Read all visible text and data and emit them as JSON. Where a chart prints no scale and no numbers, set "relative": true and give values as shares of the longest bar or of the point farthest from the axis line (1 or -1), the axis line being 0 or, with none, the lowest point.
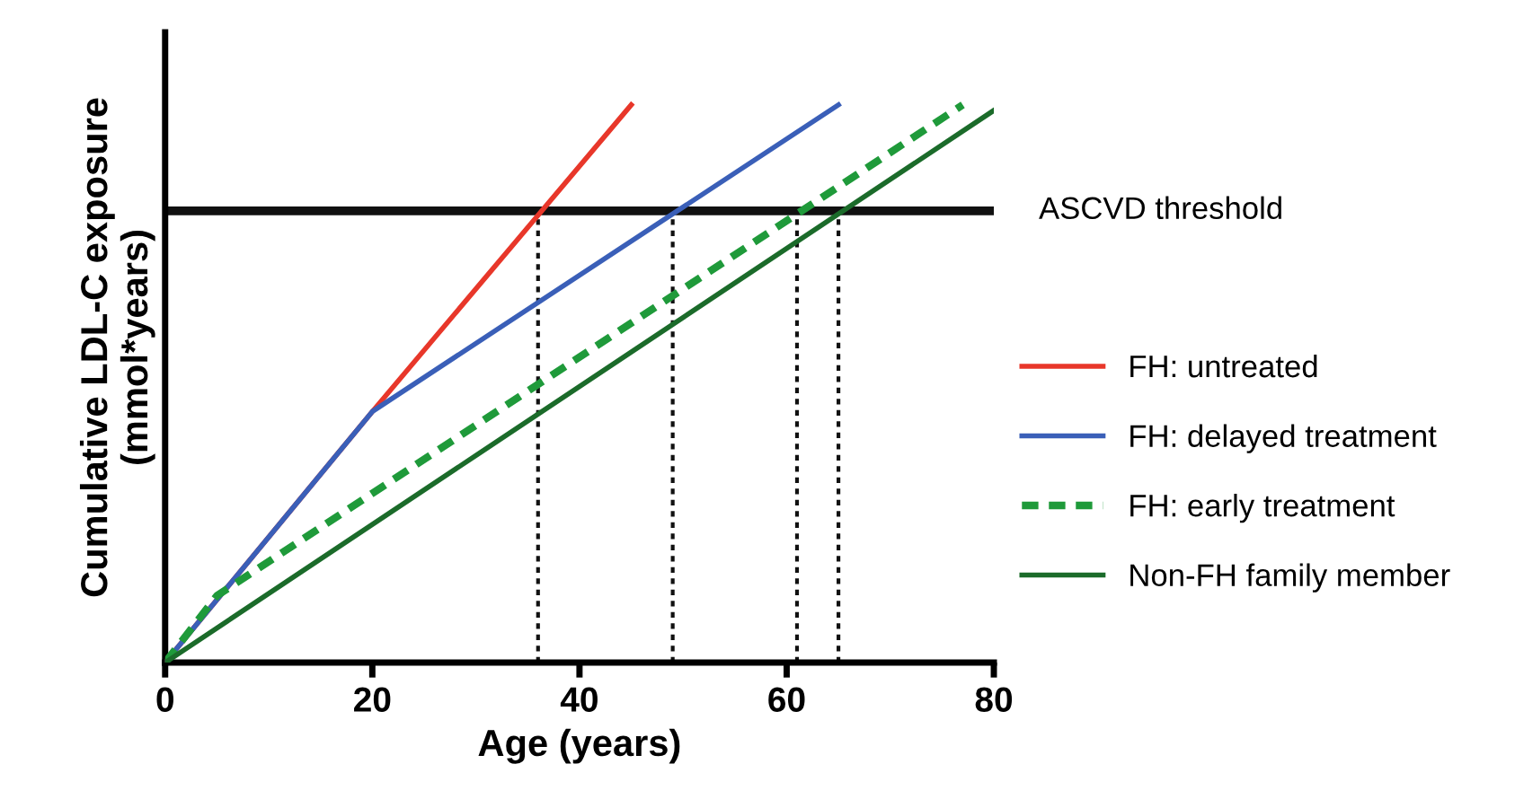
{
  "chart_data": {
    "type": "line",
    "relative": true,
    "xlabel": "Age (years)",
    "ylabel": "Cumulative LDL-C exposure\n(mmol*years)",
    "xlim": [
      0,
      80
    ],
    "xticks": [
      0,
      20,
      40,
      60,
      80
    ],
    "grid": false,
    "legend": "right",
    "series": [
      {
        "name": "FH: untreated",
        "color": "#e8372a",
        "x": [
          0,
          20,
          45
        ],
        "values": [
          0,
          0.45,
          1
        ],
        "line_style": "solid"
      },
      {
        "name": "FH: delayed treatment",
        "color": "#3a5fb8",
        "x": [
          0,
          20,
          65
        ],
        "values": [
          0,
          0.45,
          1
        ],
        "line_style": "solid"
      },
      {
        "name": "FH: early treatment",
        "color": "#1f9a3a",
        "x": [
          0,
          5,
          77
        ],
        "values": [
          0,
          0.12,
          1
        ],
        "line_style": "dashed"
      },
      {
        "name": "Non-FH family member",
        "color": "#1b6b2a",
        "x": [
          0,
          80
        ],
        "values": [
          0,
          0.99
        ],
        "line_style": "solid"
      }
    ],
    "ref_lines": [
      {
        "axis": "y",
        "value": 0.81,
        "label": "ASCVD threshold",
        "color": "#111111",
        "line_style": "solid"
      },
      {
        "axis": "x",
        "value": 36,
        "color": "#111111",
        "line_style": "dotted"
      },
      {
        "axis": "x",
        "value": 49,
        "color": "#111111",
        "line_style": "dotted"
      },
      {
        "axis": "x",
        "value": 61,
        "color": "#111111",
        "line_style": "dotted"
      },
      {
        "axis": "x",
        "value": 65,
        "color": "#111111",
        "line_style": "dotted"
      }
    ]
  }
}
